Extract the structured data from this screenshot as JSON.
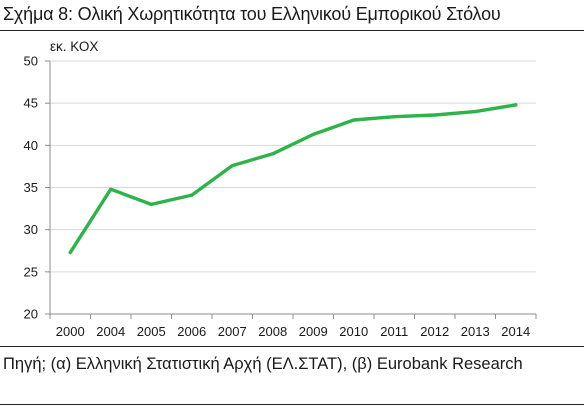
{
  "figure": {
    "title": "Σχήμα 8: Ολική Χωρητικότητα του Ελληνικού Εμπορικού Στόλου",
    "source": "Πηγή; (α) Ελληνική Στατιστική Αρχή (ΕΛ.ΣΤΑΤ), (β) Eurobank Research"
  },
  "chart_data": {
    "type": "line",
    "title": "Σχήμα 8: Ολική Χωρητικότητα του Ελληνικού Εμπορικού Στόλου",
    "ylabel": "εκ. ΚΟΧ",
    "xlabel": "",
    "categories": [
      "2000",
      "2004",
      "2005",
      "2006",
      "2007",
      "2008",
      "2009",
      "2010",
      "2011",
      "2012",
      "2013",
      "2014"
    ],
    "series": [
      {
        "values": [
          27.3,
          34.8,
          33.0,
          34.1,
          37.6,
          39.0,
          41.3,
          43.0,
          43.4,
          43.6,
          44.0,
          44.8
        ]
      }
    ],
    "ylim": [
      20,
      50
    ],
    "yticks": [
      20,
      25,
      30,
      35,
      40,
      45,
      50
    ],
    "grid": true,
    "legend": "none",
    "line_color": "#2db34a",
    "grid_color": "#d9d9d9",
    "axis_color": "#8c8c8c"
  }
}
